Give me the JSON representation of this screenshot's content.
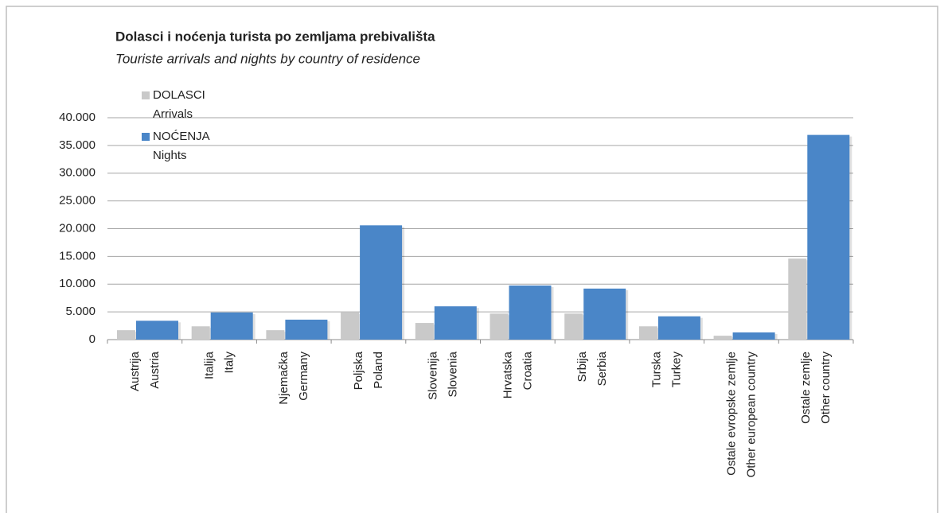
{
  "chart_data": {
    "type": "bar",
    "title": "Dolasci i noćenja turista po zemljama prebivališta",
    "subtitle": "Touriste arrivals and nights by country of residence",
    "categories": [
      [
        "Austrija",
        "Austria"
      ],
      [
        "Italija",
        "Italy"
      ],
      [
        "Njemačka",
        "Germany"
      ],
      [
        "Poljska",
        "Poland"
      ],
      [
        "Slovenija",
        "Slovenia"
      ],
      [
        "Hrvatska",
        "Croatia"
      ],
      [
        "Srbija",
        "Serbia"
      ],
      [
        "Turska",
        "Turkey"
      ],
      [
        "Ostale evropske zemlje",
        "Other european country"
      ],
      [
        "Ostale zemlje",
        "Other country"
      ]
    ],
    "series": [
      {
        "name": [
          "DOLASCI",
          "Arrivals"
        ],
        "color": "#c9c9c9",
        "values": [
          1700,
          2400,
          1700,
          4900,
          3000,
          4700,
          4700,
          2400,
          700,
          14600
        ]
      },
      {
        "name": [
          "NOĆENJA",
          "Nights"
        ],
        "color": "#4a86c8",
        "values": [
          3400,
          4900,
          3600,
          20600,
          6000,
          9750,
          9200,
          4200,
          1300,
          36900
        ]
      }
    ],
    "ylim": [
      0,
      40000
    ],
    "yticks": [
      0,
      {
        "value": 5000,
        "label": "5.000"
      },
      {
        "value": 10000,
        "label": "10.000"
      },
      {
        "value": 15000,
        "label": "15.000"
      },
      {
        "value": 20000,
        "label": "20.000"
      },
      {
        "value": 25000,
        "label": "25.000"
      },
      {
        "value": 30000,
        "label": "30.000"
      },
      {
        "value": 35000,
        "label": "35.000"
      },
      {
        "value": 40000,
        "label": "40.000"
      }
    ],
    "grid": true,
    "legend": "top-left"
  }
}
